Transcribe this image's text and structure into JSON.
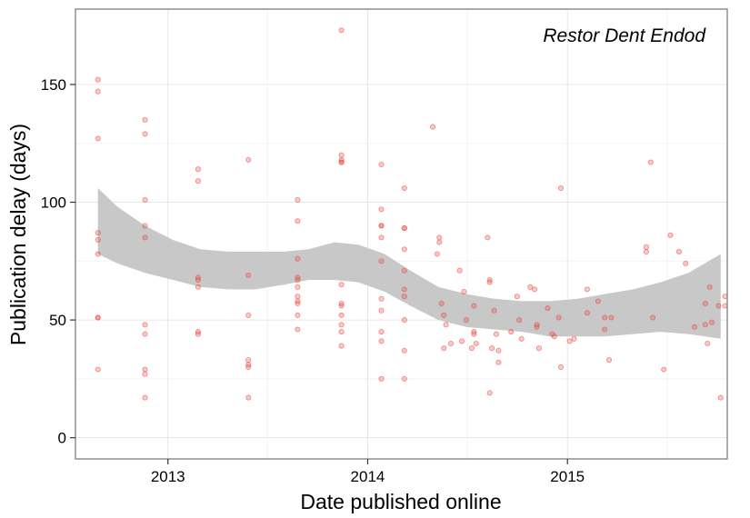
{
  "chart_data": {
    "type": "scatter",
    "panel_label": "Restor Dent Endod",
    "xlabel": "Date published online",
    "ylabel": "Publication delay (days)",
    "x_ticks": [
      "2013",
      "2014",
      "2015"
    ],
    "y_ticks": [
      0,
      50,
      100,
      150
    ],
    "xlim": [
      "2012-07-16",
      "2015-10-20"
    ],
    "ylim": [
      -9,
      182
    ],
    "grid": true,
    "point_color": "#e8443a",
    "band_color": "#c8c8c8",
    "series": [
      {
        "points": [
          {
            "x": "2012-08-26",
            "y": 152
          },
          {
            "x": "2012-08-26",
            "y": 147
          },
          {
            "x": "2012-08-26",
            "y": 127
          },
          {
            "x": "2012-08-26",
            "y": 87
          },
          {
            "x": "2012-08-26",
            "y": 84
          },
          {
            "x": "2012-08-26",
            "y": 78
          },
          {
            "x": "2012-08-26",
            "y": 51
          },
          {
            "x": "2012-08-26",
            "y": 51
          },
          {
            "x": "2012-08-26",
            "y": 29
          },
          {
            "x": "2012-11-20",
            "y": 135
          },
          {
            "x": "2012-11-20",
            "y": 129
          },
          {
            "x": "2012-11-20",
            "y": 101
          },
          {
            "x": "2012-11-20",
            "y": 90
          },
          {
            "x": "2012-11-20",
            "y": 85
          },
          {
            "x": "2012-11-20",
            "y": 48
          },
          {
            "x": "2012-11-20",
            "y": 44
          },
          {
            "x": "2012-11-20",
            "y": 29
          },
          {
            "x": "2012-11-20",
            "y": 27
          },
          {
            "x": "2012-11-20",
            "y": 17
          },
          {
            "x": "2013-02-25",
            "y": 114
          },
          {
            "x": "2013-02-25",
            "y": 109
          },
          {
            "x": "2013-02-25",
            "y": 68
          },
          {
            "x": "2013-02-25",
            "y": 67
          },
          {
            "x": "2013-02-25",
            "y": 64
          },
          {
            "x": "2013-02-25",
            "y": 45
          },
          {
            "x": "2013-02-25",
            "y": 44
          },
          {
            "x": "2013-05-28",
            "y": 118
          },
          {
            "x": "2013-05-28",
            "y": 69
          },
          {
            "x": "2013-05-28",
            "y": 52
          },
          {
            "x": "2013-05-28",
            "y": 33
          },
          {
            "x": "2013-05-28",
            "y": 31
          },
          {
            "x": "2013-05-28",
            "y": 30
          },
          {
            "x": "2013-05-28",
            "y": 17
          },
          {
            "x": "2013-08-26",
            "y": 101
          },
          {
            "x": "2013-08-26",
            "y": 92
          },
          {
            "x": "2013-08-26",
            "y": 76
          },
          {
            "x": "2013-08-26",
            "y": 68
          },
          {
            "x": "2013-08-26",
            "y": 67
          },
          {
            "x": "2013-08-26",
            "y": 64
          },
          {
            "x": "2013-08-26",
            "y": 60
          },
          {
            "x": "2013-08-26",
            "y": 58
          },
          {
            "x": "2013-08-26",
            "y": 57
          },
          {
            "x": "2013-08-26",
            "y": 52
          },
          {
            "x": "2013-08-26",
            "y": 46
          },
          {
            "x": "2013-11-14",
            "y": 173
          },
          {
            "x": "2013-11-14",
            "y": 120
          },
          {
            "x": "2013-11-14",
            "y": 118
          },
          {
            "x": "2013-11-14",
            "y": 117
          },
          {
            "x": "2013-11-14",
            "y": 117
          },
          {
            "x": "2013-11-14",
            "y": 65
          },
          {
            "x": "2013-11-14",
            "y": 57
          },
          {
            "x": "2013-11-14",
            "y": 56
          },
          {
            "x": "2013-11-14",
            "y": 52
          },
          {
            "x": "2013-11-14",
            "y": 48
          },
          {
            "x": "2013-11-14",
            "y": 45
          },
          {
            "x": "2013-11-14",
            "y": 39
          },
          {
            "x": "2014-01-26",
            "y": 116
          },
          {
            "x": "2014-01-26",
            "y": 97
          },
          {
            "x": "2014-01-26",
            "y": 90
          },
          {
            "x": "2014-01-26",
            "y": 90
          },
          {
            "x": "2014-01-26",
            "y": 85
          },
          {
            "x": "2014-01-26",
            "y": 75
          },
          {
            "x": "2014-01-26",
            "y": 59
          },
          {
            "x": "2014-01-26",
            "y": 54
          },
          {
            "x": "2014-01-26",
            "y": 45
          },
          {
            "x": "2014-01-26",
            "y": 41
          },
          {
            "x": "2014-01-26",
            "y": 25
          },
          {
            "x": "2014-03-09",
            "y": 106
          },
          {
            "x": "2014-03-09",
            "y": 89
          },
          {
            "x": "2014-03-09",
            "y": 89
          },
          {
            "x": "2014-03-09",
            "y": 80
          },
          {
            "x": "2014-03-09",
            "y": 71
          },
          {
            "x": "2014-03-09",
            "y": 63
          },
          {
            "x": "2014-03-09",
            "y": 60
          },
          {
            "x": "2014-03-09",
            "y": 50
          },
          {
            "x": "2014-03-09",
            "y": 37
          },
          {
            "x": "2014-03-09",
            "y": 25
          },
          {
            "x": "2014-04-30",
            "y": 132
          },
          {
            "x": "2014-05-12",
            "y": 85
          },
          {
            "x": "2014-05-12",
            "y": 83
          },
          {
            "x": "2014-05-08",
            "y": 78
          },
          {
            "x": "2014-05-16",
            "y": 57
          },
          {
            "x": "2014-05-20",
            "y": 52
          },
          {
            "x": "2014-05-24",
            "y": 48
          },
          {
            "x": "2014-05-20",
            "y": 38
          },
          {
            "x": "2014-06-02",
            "y": 40
          },
          {
            "x": "2014-06-18",
            "y": 71
          },
          {
            "x": "2014-06-26",
            "y": 62
          },
          {
            "x": "2014-06-30",
            "y": 50
          },
          {
            "x": "2014-06-22",
            "y": 41
          },
          {
            "x": "2014-07-14",
            "y": 56
          },
          {
            "x": "2014-07-14",
            "y": 45
          },
          {
            "x": "2014-07-14",
            "y": 44
          },
          {
            "x": "2014-07-10",
            "y": 38
          },
          {
            "x": "2014-07-18",
            "y": 40
          },
          {
            "x": "2014-08-08",
            "y": 85
          },
          {
            "x": "2014-08-12",
            "y": 67
          },
          {
            "x": "2014-08-12",
            "y": 66
          },
          {
            "x": "2014-08-20",
            "y": 54
          },
          {
            "x": "2014-08-24",
            "y": 44
          },
          {
            "x": "2014-08-16",
            "y": 38
          },
          {
            "x": "2014-08-28",
            "y": 37
          },
          {
            "x": "2014-08-28",
            "y": 32
          },
          {
            "x": "2014-08-12",
            "y": 19
          },
          {
            "x": "2014-09-20",
            "y": 45
          },
          {
            "x": "2014-10-01",
            "y": 60
          },
          {
            "x": "2014-10-05",
            "y": 50
          },
          {
            "x": "2014-10-09",
            "y": 42
          },
          {
            "x": "2014-10-25",
            "y": 64
          },
          {
            "x": "2014-11-02",
            "y": 63
          },
          {
            "x": "2014-11-06",
            "y": 48
          },
          {
            "x": "2014-11-06",
            "y": 47
          },
          {
            "x": "2014-11-10",
            "y": 38
          },
          {
            "x": "2014-11-26",
            "y": 55
          },
          {
            "x": "2014-12-04",
            "y": 44
          },
          {
            "x": "2014-12-08",
            "y": 43
          },
          {
            "x": "2014-12-16",
            "y": 51
          },
          {
            "x": "2014-12-20",
            "y": 106
          },
          {
            "x": "2014-12-20",
            "y": 30
          },
          {
            "x": "2015-01-05",
            "y": 41
          },
          {
            "x": "2015-01-13",
            "y": 42
          },
          {
            "x": "2015-02-06",
            "y": 63
          },
          {
            "x": "2015-02-06",
            "y": 53
          },
          {
            "x": "2015-02-26",
            "y": 58
          },
          {
            "x": "2015-03-10",
            "y": 51
          },
          {
            "x": "2015-03-10",
            "y": 46
          },
          {
            "x": "2015-03-18",
            "y": 33
          },
          {
            "x": "2015-03-22",
            "y": 51
          },
          {
            "x": "2015-05-25",
            "y": 81
          },
          {
            "x": "2015-05-25",
            "y": 79
          },
          {
            "x": "2015-06-02",
            "y": 117
          },
          {
            "x": "2015-06-06",
            "y": 51
          },
          {
            "x": "2015-06-26",
            "y": 29
          },
          {
            "x": "2015-07-08",
            "y": 86
          },
          {
            "x": "2015-07-24",
            "y": 79
          },
          {
            "x": "2015-08-05",
            "y": 74
          },
          {
            "x": "2015-08-21",
            "y": 47
          },
          {
            "x": "2015-09-10",
            "y": 57
          },
          {
            "x": "2015-09-10",
            "y": 48
          },
          {
            "x": "2015-09-14",
            "y": 40
          },
          {
            "x": "2015-09-18",
            "y": 64
          },
          {
            "x": "2015-09-22",
            "y": 49
          },
          {
            "x": "2015-10-04",
            "y": 56
          },
          {
            "x": "2015-10-08",
            "y": 17
          },
          {
            "x": "2015-10-16",
            "y": 60
          },
          {
            "x": "2015-10-16",
            "y": 56
          }
        ]
      }
    ],
    "smooth_band": [
      {
        "x": "2012-08-26",
        "lo": 78,
        "hi": 106
      },
      {
        "x": "2012-10-01",
        "lo": 74,
        "hi": 98
      },
      {
        "x": "2012-11-20",
        "lo": 70,
        "hi": 90
      },
      {
        "x": "2013-01-10",
        "lo": 67,
        "hi": 84
      },
      {
        "x": "2013-03-01",
        "lo": 64,
        "hi": 80
      },
      {
        "x": "2013-04-20",
        "lo": 63,
        "hi": 79
      },
      {
        "x": "2013-06-10",
        "lo": 63,
        "hi": 79
      },
      {
        "x": "2013-08-01",
        "lo": 65,
        "hi": 79
      },
      {
        "x": "2013-09-15",
        "lo": 67,
        "hi": 80
      },
      {
        "x": "2013-11-01",
        "lo": 67,
        "hi": 83
      },
      {
        "x": "2013-12-15",
        "lo": 66,
        "hi": 82
      },
      {
        "x": "2014-02-01",
        "lo": 62,
        "hi": 78
      },
      {
        "x": "2014-03-20",
        "lo": 56,
        "hi": 71
      },
      {
        "x": "2014-05-10",
        "lo": 50,
        "hi": 64
      },
      {
        "x": "2014-07-01",
        "lo": 47,
        "hi": 61
      },
      {
        "x": "2014-08-20",
        "lo": 46,
        "hi": 59
      },
      {
        "x": "2014-10-10",
        "lo": 45,
        "hi": 58
      },
      {
        "x": "2014-12-01",
        "lo": 43,
        "hi": 58
      },
      {
        "x": "2015-01-20",
        "lo": 43,
        "hi": 59
      },
      {
        "x": "2015-03-10",
        "lo": 43,
        "hi": 61
      },
      {
        "x": "2015-05-01",
        "lo": 44,
        "hi": 63
      },
      {
        "x": "2015-06-20",
        "lo": 45,
        "hi": 66
      },
      {
        "x": "2015-08-10",
        "lo": 44,
        "hi": 70
      },
      {
        "x": "2015-10-08",
        "lo": 42,
        "hi": 78
      }
    ]
  }
}
